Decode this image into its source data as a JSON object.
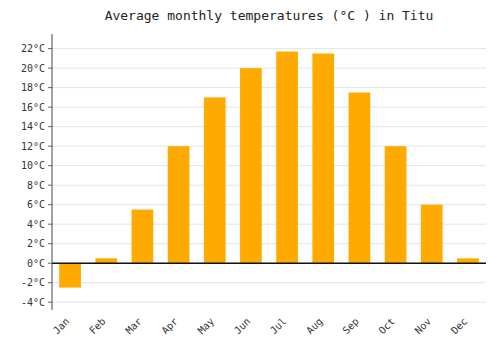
{
  "chart_data": {
    "type": "bar",
    "title": "Average monthly temperatures (°C ) in Titu",
    "categories": [
      "Jan",
      "Feb",
      "Mar",
      "Apr",
      "May",
      "Jun",
      "Jul",
      "Aug",
      "Sep",
      "Oct",
      "Nov",
      "Dec"
    ],
    "values": [
      -2.5,
      0.5,
      5.5,
      12.0,
      17.0,
      20.0,
      21.7,
      21.5,
      17.5,
      12.0,
      6.0,
      0.5
    ],
    "color": "#FFAA00",
    "ylim": [
      -4.8,
      23.5
    ],
    "yticks": [
      {
        "value": -4,
        "label": "-4°C"
      },
      {
        "value": -2,
        "label": "-2°C"
      },
      {
        "value": 0,
        "label": "0°C"
      },
      {
        "value": 2,
        "label": "2°C"
      },
      {
        "value": 4,
        "label": "4°C"
      },
      {
        "value": 6,
        "label": "6°C"
      },
      {
        "value": 8,
        "label": "8°C"
      },
      {
        "value": 10,
        "label": "10°C"
      },
      {
        "value": 12,
        "label": "12°C"
      },
      {
        "value": 14,
        "label": "14°C"
      },
      {
        "value": 16,
        "label": "16°C"
      },
      {
        "value": 18,
        "label": "18°C"
      },
      {
        "value": 20,
        "label": "20°C"
      },
      {
        "value": 22,
        "label": "22°C"
      }
    ],
    "grid": true
  }
}
